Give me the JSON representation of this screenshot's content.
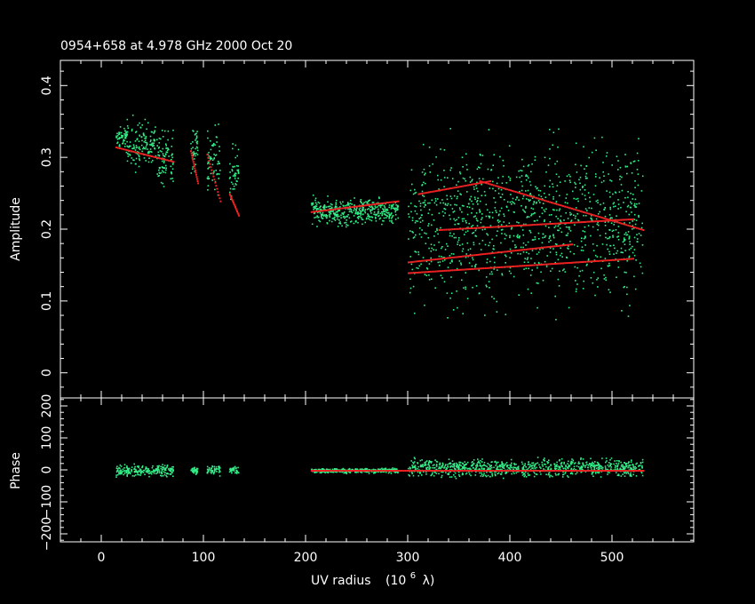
{
  "chart_data": {
    "type": "scatter",
    "title": "0954+658 at 4.978 GHz 2000 Oct 20",
    "xlabel": "UV radius",
    "xlabel_unit_base": "(10",
    "xlabel_unit_exp": "6",
    "xlabel_unit_sym": "λ)",
    "xlim": [
      -40,
      580
    ],
    "x_ticks": [
      0,
      100,
      200,
      300,
      400,
      500
    ],
    "x_tick_labels": [
      "0",
      "100",
      "200",
      "300",
      "400",
      "500"
    ],
    "colors": {
      "observed": "#33ee88",
      "model": "#ee2222",
      "axes": "#ffffff",
      "background": "#000000"
    },
    "panels": [
      {
        "name": "amplitude",
        "ylabel": "Amplitude",
        "ylim": [
          -0.035,
          0.435
        ],
        "y_ticks": [
          0,
          0.1,
          0.2,
          0.3,
          0.4
        ],
        "y_tick_labels": [
          "0",
          "0.1",
          "0.2",
          "0.3",
          "0.4"
        ],
        "clusters": [
          {
            "x": [
              14,
              24
            ],
            "y": [
              0.31,
              0.35
            ]
          },
          {
            "x": [
              24,
              38
            ],
            "y": [
              0.27,
              0.37
            ]
          },
          {
            "x": [
              38,
              52
            ],
            "y": [
              0.28,
              0.36
            ]
          },
          {
            "x": [
              52,
              70
            ],
            "y": [
              0.25,
              0.35
            ]
          },
          {
            "x": [
              87,
              94
            ],
            "y": [
              0.26,
              0.36
            ]
          },
          {
            "x": [
              103,
              116
            ],
            "y": [
              0.23,
              0.36
            ]
          },
          {
            "x": [
              125,
              134
            ],
            "y": [
              0.22,
              0.34
            ]
          },
          {
            "x": [
              205,
              290
            ],
            "y": [
              0.2,
              0.25
            ]
          },
          {
            "x": [
              300,
              530
            ],
            "y": [
              0.06,
              0.36
            ]
          }
        ],
        "model_curves": [
          {
            "x": [
              14,
              70
            ],
            "y": [
              0.315,
              0.295
            ]
          },
          {
            "x": [
              87,
              94
            ],
            "y": [
              0.31,
              0.265
            ]
          },
          {
            "x": [
              103,
              116
            ],
            "y": [
              0.305,
              0.24
            ]
          },
          {
            "x": [
              125,
              134
            ],
            "y": [
              0.25,
              0.22
            ]
          },
          {
            "x": [
              205,
              290
            ],
            "y": [
              0.225,
              0.24
            ]
          },
          {
            "x": [
              310,
              380
            ],
            "y": [
              0.25,
              0.268
            ]
          },
          {
            "x": [
              370,
              530
            ],
            "y": [
              0.268,
              0.2
            ]
          },
          {
            "x": [
              300,
              520
            ],
            "y": [
              0.14,
              0.16
            ]
          },
          {
            "x": [
              300,
              460
            ],
            "y": [
              0.155,
              0.18
            ]
          },
          {
            "x": [
              330,
              520
            ],
            "y": [
              0.2,
              0.215
            ]
          }
        ]
      },
      {
        "name": "phase",
        "ylabel": "Phase",
        "ylim": [
          -225,
          225
        ],
        "y_ticks": [
          -200,
          -100,
          0,
          100,
          200
        ],
        "y_tick_labels": [
          "−200",
          "−100",
          "0",
          "100",
          "200"
        ],
        "clusters": [
          {
            "x": [
              14,
              70
            ],
            "y": [
              -25,
              25
            ]
          },
          {
            "x": [
              87,
              94
            ],
            "y": [
              -15,
              15
            ]
          },
          {
            "x": [
              103,
              116
            ],
            "y": [
              -20,
              20
            ]
          },
          {
            "x": [
              125,
              134
            ],
            "y": [
              -15,
              15
            ]
          },
          {
            "x": [
              205,
              290
            ],
            "y": [
              -10,
              10
            ]
          },
          {
            "x": [
              300,
              530
            ],
            "y": [
              -30,
              45
            ]
          }
        ],
        "model_curves": [
          {
            "x": [
              205,
              530
            ],
            "y": [
              0,
              0
            ]
          }
        ]
      }
    ]
  }
}
